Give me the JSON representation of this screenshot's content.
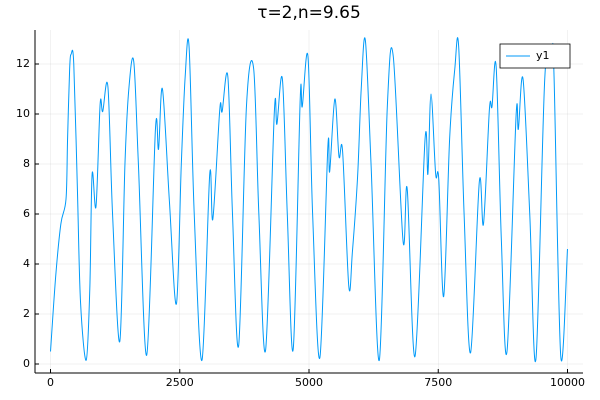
{
  "chart_data": {
    "type": "line",
    "title": "τ=2,n=9.65",
    "x": [
      0,
      100,
      200,
      300,
      330,
      370,
      400,
      450,
      520,
      580,
      690,
      760,
      805,
      880,
      960,
      1010,
      1110,
      1200,
      1340,
      1440,
      1515,
      1610,
      1700,
      1860,
      2030,
      2090,
      2165,
      2300,
      2435,
      2530,
      2605,
      2680,
      2780,
      2930,
      3080,
      3140,
      3275,
      3320,
      3430,
      3520,
      3640,
      3790,
      3930,
      4030,
      4160,
      4330,
      4380,
      4485,
      4580,
      4695,
      4830,
      4870,
      4980,
      5070,
      5210,
      5365,
      5400,
      5500,
      5580,
      5650,
      5770,
      5840,
      5940,
      6010,
      6090,
      6200,
      6360,
      6515,
      6630,
      6820,
      6900,
      7050,
      7245,
      7300,
      7360,
      7450,
      7510,
      7605,
      7720,
      7820,
      7895,
      8000,
      8125,
      8295,
      8375,
      8490,
      8540,
      8620,
      8720,
      8830,
      9005,
      9050,
      9140,
      9270,
      9390,
      9560,
      9695,
      9740,
      9870,
      10000
    ],
    "series": [
      {
        "name": "y1",
        "color": "#009af9",
        "values": [
          0.5,
          3.5,
          5.6,
          6.6,
          9,
          11.8,
          12.4,
          12,
          7,
          2.5,
          0.15,
          3,
          7.6,
          6.3,
          10.4,
          10.1,
          11.1,
          6,
          0.9,
          8,
          11,
          12.1,
          8,
          0.35,
          9.4,
          8.6,
          11,
          6.5,
          2.4,
          8,
          11.5,
          12.7,
          6,
          0.15,
          7.6,
          5.8,
          10.2,
          10.1,
          11.5,
          6,
          0.75,
          10.3,
          11.8,
          6,
          0.55,
          10.1,
          9.6,
          11.4,
          6,
          0.6,
          10.6,
          10.3,
          12.3,
          6,
          0.25,
          8.7,
          7.7,
          10.6,
          8.3,
          8.5,
          3.1,
          4.5,
          7.5,
          11,
          12.95,
          8,
          0.15,
          10.3,
          12.3,
          4.9,
          7,
          0.3,
          9,
          7.6,
          10.8,
          7.6,
          7.4,
          2.7,
          9,
          11.8,
          12.7,
          6,
          0.45,
          7.3,
          5.6,
          10.2,
          10.3,
          11.9,
          5,
          0.5,
          9.9,
          9.4,
          11.4,
          6,
          0.2,
          11.4,
          12.6,
          11.5,
          0.3,
          4.6
        ]
      }
    ],
    "xlim": [
      -300,
      10300
    ],
    "xticks": [
      0,
      2500,
      5000,
      7500,
      10000
    ],
    "ylim": [
      -0.36,
      13.36
    ],
    "yticks": [
      0,
      2,
      4,
      6,
      8,
      10,
      12
    ],
    "grid": true,
    "legend": "top-right"
  }
}
